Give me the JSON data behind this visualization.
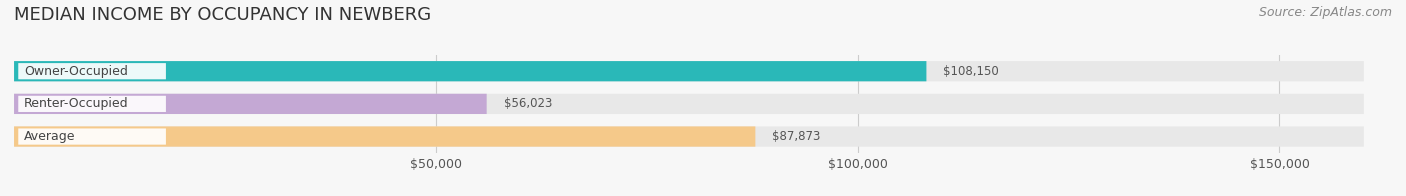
{
  "title": "MEDIAN INCOME BY OCCUPANCY IN NEWBERG",
  "source": "Source: ZipAtlas.com",
  "categories": [
    "Owner-Occupied",
    "Renter-Occupied",
    "Average"
  ],
  "values": [
    108150,
    56023,
    87873
  ],
  "bar_colors": [
    "#2ab8b8",
    "#c4a8d4",
    "#f5c98a"
  ],
  "bar_bg_color": "#e8e8e8",
  "value_labels": [
    "$108,150",
    "$56,023",
    "$87,873"
  ],
  "xlim": [
    0,
    160000
  ],
  "xticks": [
    50000,
    100000,
    150000
  ],
  "xtick_labels": [
    "$50,000",
    "$100,000",
    "$150,000"
  ],
  "title_fontsize": 13,
  "source_fontsize": 9,
  "label_fontsize": 9,
  "value_fontsize": 8.5,
  "bar_height": 0.62,
  "figsize": [
    14.06,
    1.96
  ],
  "dpi": 100,
  "bg_color": "#f7f7f7"
}
